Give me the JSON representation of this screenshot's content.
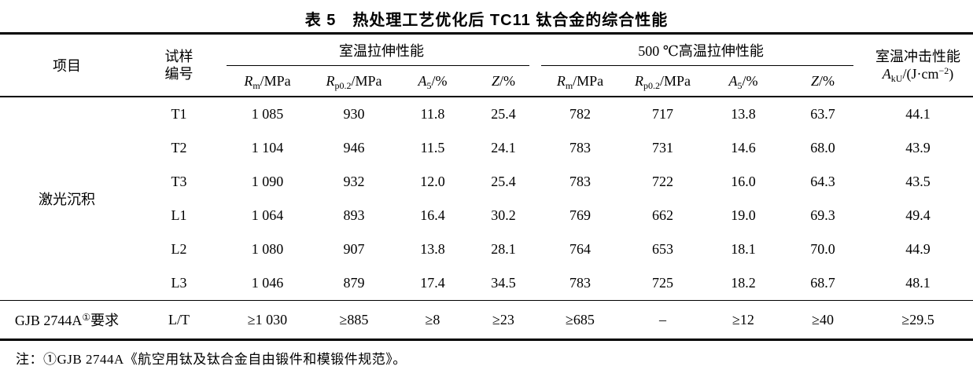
{
  "title": "表 5　热处理工艺优化后 TC11 钛合金的综合性能",
  "table": {
    "header": {
      "project": "项目",
      "sample_line1": "试样",
      "sample_line2": "编号",
      "group_rt": "室温拉伸性能",
      "group_ht": "500 ℃高温拉伸性能",
      "impact_line1": "室温冲击性能",
      "impact_sym": "A",
      "impact_sub": "kU",
      "impact_mid": "/(J·cm",
      "impact_sup": "−2",
      "impact_end": ")",
      "sub_cols": [
        {
          "sym": "R",
          "sub": "m",
          "rest": "/MPa"
        },
        {
          "sym": "R",
          "sub": "p0.2",
          "rest": "/MPa"
        },
        {
          "sym": "A",
          "sub": "5",
          "rest": "/%"
        },
        {
          "sym": "Z",
          "sub": "",
          "rest": "/%"
        }
      ]
    },
    "project_label": "激光沉积",
    "rows": [
      {
        "cells": [
          "T1",
          "1 085",
          "930",
          "11.8",
          "25.4",
          "782",
          "717",
          "13.8",
          "63.7",
          "44.1"
        ]
      },
      {
        "cells": [
          "T2",
          "1 104",
          "946",
          "11.5",
          "24.1",
          "783",
          "731",
          "14.6",
          "68.0",
          "43.9"
        ]
      },
      {
        "cells": [
          "T3",
          "1 090",
          "932",
          "12.0",
          "25.4",
          "783",
          "722",
          "16.0",
          "64.3",
          "43.5"
        ]
      },
      {
        "cells": [
          "L1",
          "1 064",
          "893",
          "16.4",
          "30.2",
          "769",
          "662",
          "19.0",
          "69.3",
          "49.4"
        ]
      },
      {
        "cells": [
          "L2",
          "1 080",
          "907",
          "13.8",
          "28.1",
          "764",
          "653",
          "18.1",
          "70.0",
          "44.9"
        ]
      },
      {
        "cells": [
          "L3",
          "1 046",
          "879",
          "17.4",
          "34.5",
          "783",
          "725",
          "18.2",
          "68.7",
          "48.1"
        ]
      }
    ],
    "req_row": {
      "label_prefix": "GJB 2744A",
      "label_sup": "①",
      "label_suffix": "要求",
      "cells": [
        "L/T",
        "≥1 030",
        "≥885",
        "≥8",
        "≥23",
        "≥685",
        "–",
        "≥12",
        "≥40",
        "≥29.5"
      ]
    }
  },
  "note": "注：①GJB 2744A《航空用钛及钛合金自由锻件和模锻件规范》。"
}
